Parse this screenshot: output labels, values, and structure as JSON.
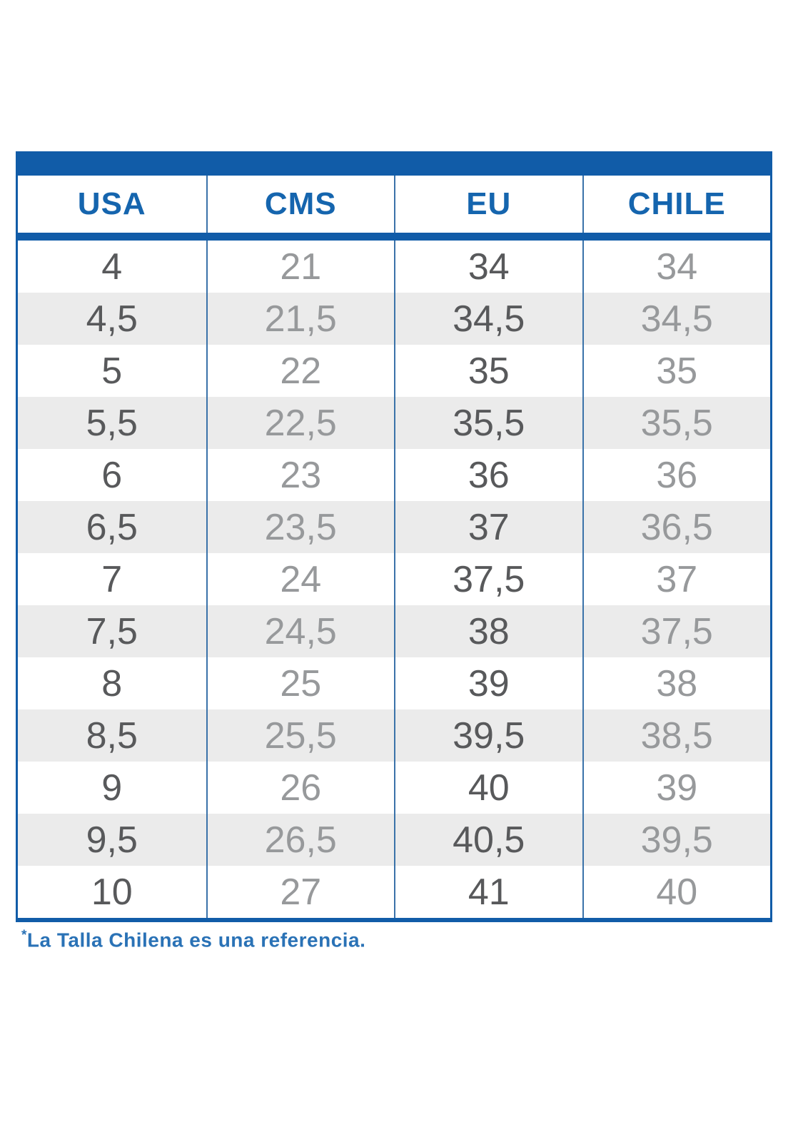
{
  "table": {
    "columns": [
      "USA",
      "CMS",
      "EU",
      "CHILE"
    ],
    "rows": [
      [
        "4",
        "21",
        "34",
        "34"
      ],
      [
        "4,5",
        "21,5",
        "34,5",
        "34,5"
      ],
      [
        "5",
        "22",
        "35",
        "35"
      ],
      [
        "5,5",
        "22,5",
        "35,5",
        "35,5"
      ],
      [
        "6",
        "23",
        "36",
        "36"
      ],
      [
        "6,5",
        "23,5",
        "37",
        "36,5"
      ],
      [
        "7",
        "24",
        "37,5",
        "37"
      ],
      [
        "7,5",
        "24,5",
        "38",
        "37,5"
      ],
      [
        "8",
        "25",
        "39",
        "38"
      ],
      [
        "8,5",
        "25,5",
        "39,5",
        "38,5"
      ],
      [
        "9",
        "26",
        "40",
        "39"
      ],
      [
        "9,5",
        "26,5",
        "40,5",
        "39,5"
      ],
      [
        "10",
        "27",
        "41",
        "40"
      ]
    ]
  },
  "footnote": {
    "asterisk": "*",
    "text": "La Talla Chilena es una referencia."
  },
  "colors": {
    "blue": "#115CA8",
    "header_text": "#1565AE",
    "column_divider": "#3A72A9",
    "alt_row": "#EBEBEB",
    "dark_number": "#58595B",
    "light_number": "#97999B",
    "footnote_blue": "#2A72B6"
  },
  "chart_data": {
    "type": "table",
    "title": "",
    "columns": [
      "USA",
      "CMS",
      "EU",
      "CHILE"
    ],
    "rows": [
      [
        "4",
        "21",
        "34",
        "34"
      ],
      [
        "4,5",
        "21,5",
        "34,5",
        "34,5"
      ],
      [
        "5",
        "22",
        "35",
        "35"
      ],
      [
        "5,5",
        "22,5",
        "35,5",
        "35,5"
      ],
      [
        "6",
        "23",
        "36",
        "36"
      ],
      [
        "6,5",
        "23,5",
        "37",
        "36,5"
      ],
      [
        "7",
        "24",
        "37,5",
        "37"
      ],
      [
        "7,5",
        "24,5",
        "38",
        "37,5"
      ],
      [
        "8",
        "25",
        "39",
        "38"
      ],
      [
        "8,5",
        "25,5",
        "39,5",
        "38,5"
      ],
      [
        "9",
        "26",
        "40",
        "39"
      ],
      [
        "9,5",
        "26,5",
        "40,5",
        "39,5"
      ],
      [
        "10",
        "27",
        "41",
        "40"
      ]
    ],
    "annotations": [
      "*La Talla Chilena es una referencia."
    ],
    "layout_hints": {
      "alternating_row_shading": true,
      "header_position": "top",
      "grid": "vertical-dividers-only"
    }
  }
}
